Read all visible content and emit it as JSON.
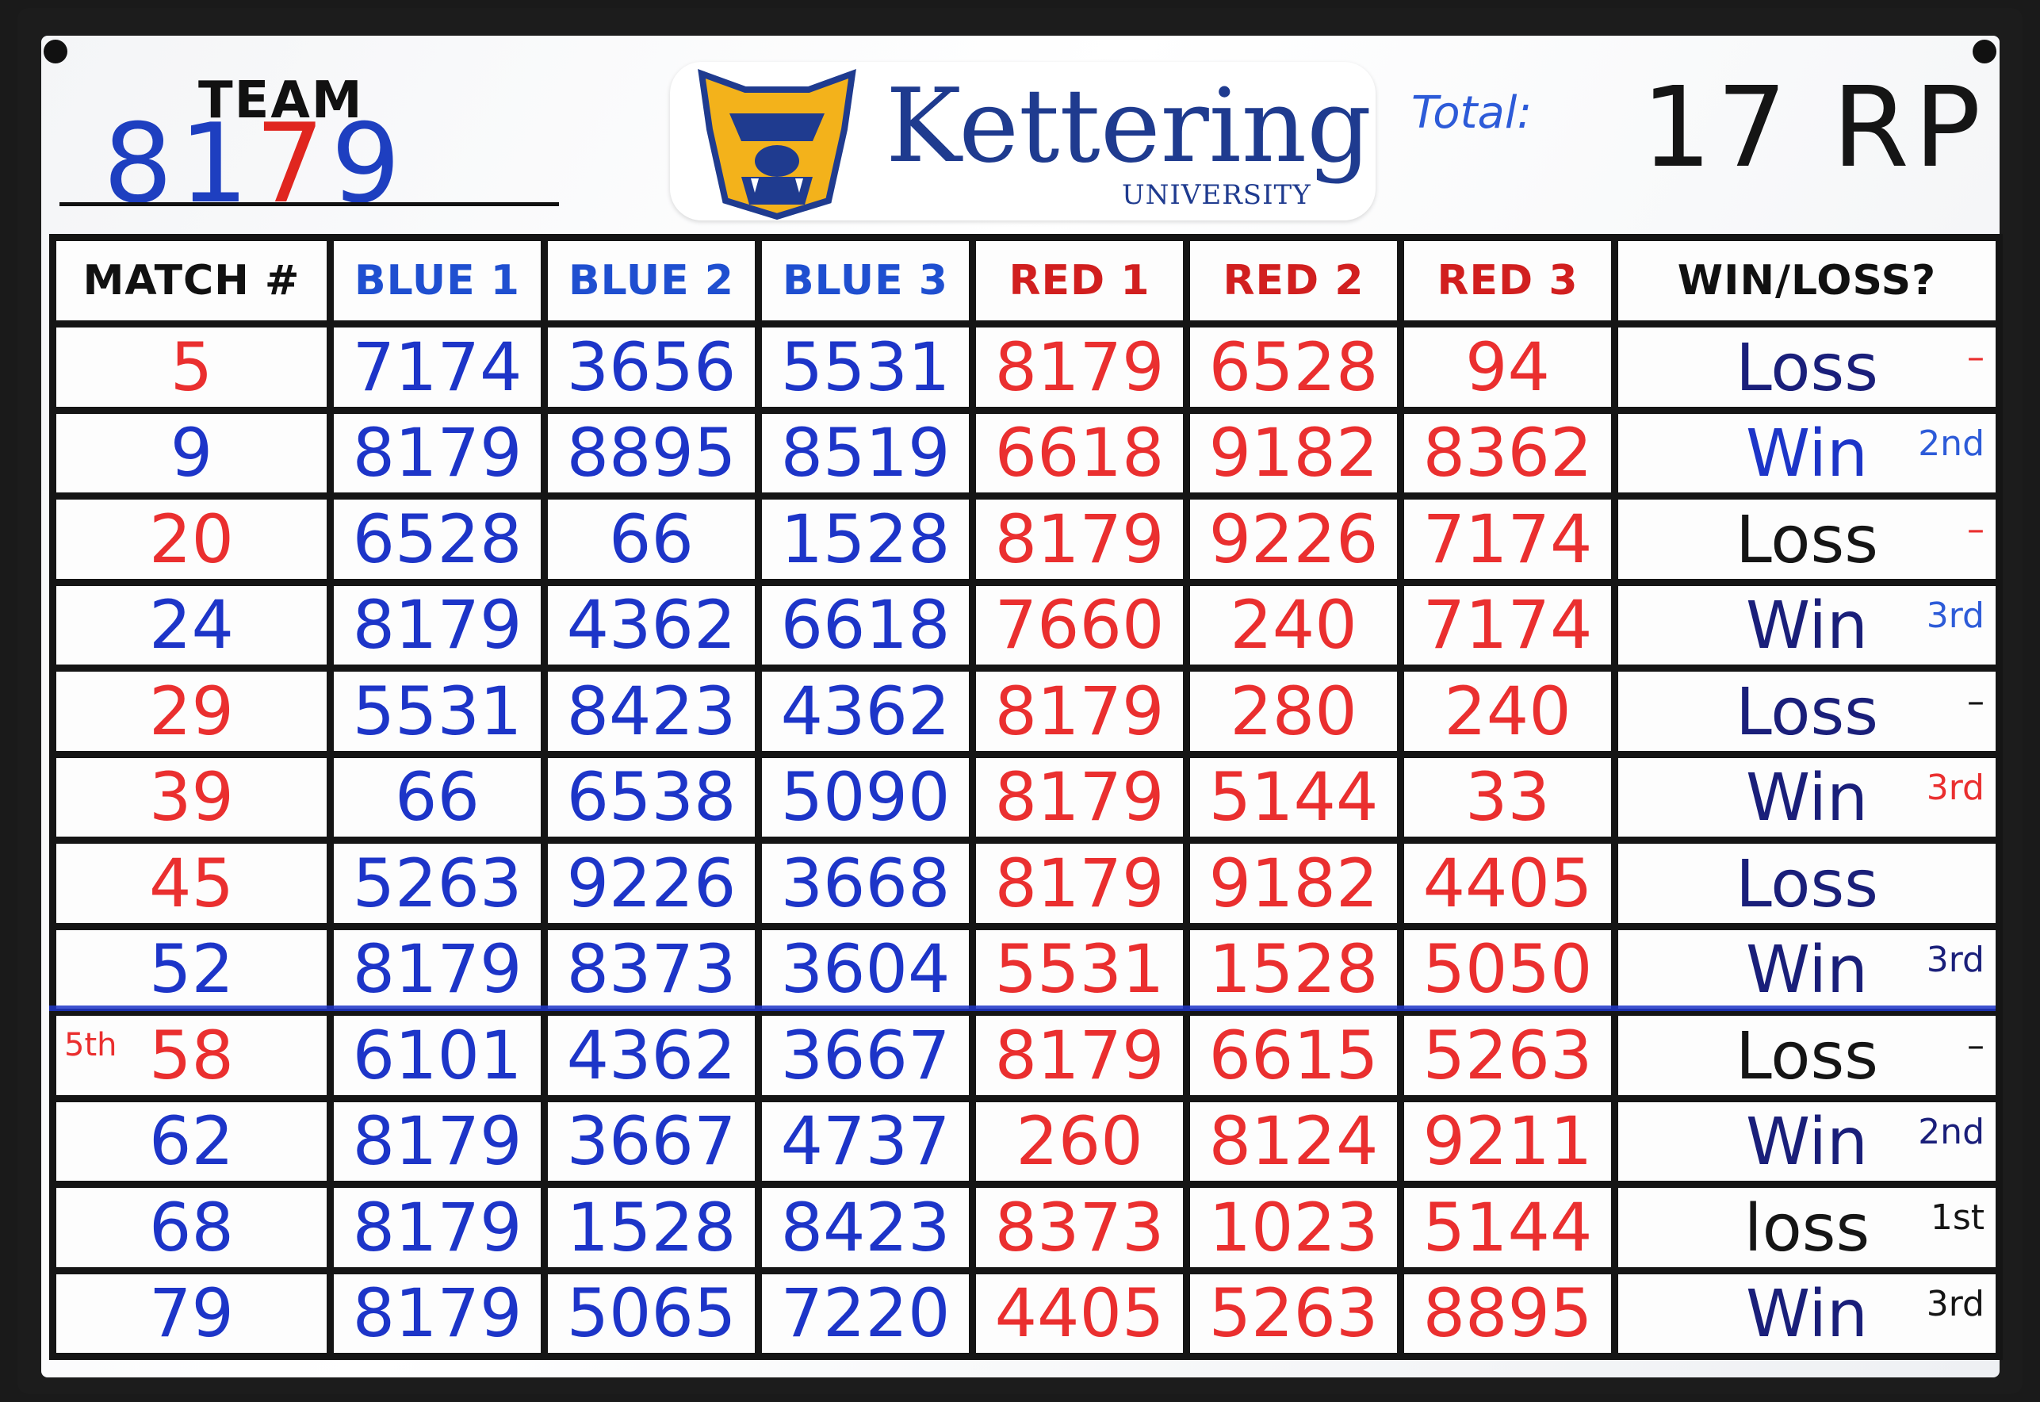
{
  "team": {
    "label": "TEAM",
    "number_blue_1": "81",
    "number_red": "7",
    "number_blue_2": "9"
  },
  "logo": {
    "name": "Kettering",
    "sub": "UNIVERSITY"
  },
  "total": {
    "label": "Total:",
    "value": "17 RP"
  },
  "headers": [
    "MATCH #",
    "BLUE 1",
    "BLUE 2",
    "BLUE 3",
    "RED 1",
    "RED 2",
    "RED 3",
    "WIN/LOSS?"
  ],
  "rows": [
    {
      "match": "5",
      "match_ink": "red",
      "blue": [
        "7174",
        "3656",
        "5531"
      ],
      "red": [
        "8179",
        "6528",
        "94"
      ],
      "result": "Loss",
      "result_ink": "navy",
      "rank": "–",
      "rank_ink": "red"
    },
    {
      "match": "9",
      "match_ink": "blue",
      "blue": [
        "8179",
        "8895",
        "8519"
      ],
      "red": [
        "6618",
        "9182",
        "8362"
      ],
      "result": "Win",
      "result_ink": "blue",
      "rank": "2nd",
      "rank_ink": "blue"
    },
    {
      "match": "20",
      "match_ink": "red",
      "blue": [
        "6528",
        "66",
        "1528"
      ],
      "red": [
        "8179",
        "9226",
        "7174"
      ],
      "result": "Loss",
      "result_ink": "black",
      "rank": "–",
      "rank_ink": "red"
    },
    {
      "match": "24",
      "match_ink": "blue",
      "blue": [
        "8179",
        "4362",
        "6618"
      ],
      "red": [
        "7660",
        "240",
        "7174"
      ],
      "result": "Win",
      "result_ink": "navy",
      "rank": "3rd",
      "rank_ink": "blue"
    },
    {
      "match": "29",
      "match_ink": "red",
      "blue": [
        "5531",
        "8423",
        "4362"
      ],
      "red": [
        "8179",
        "280",
        "240"
      ],
      "result": "Loss",
      "result_ink": "navy",
      "rank": "–",
      "rank_ink": "black"
    },
    {
      "match": "39",
      "match_ink": "red",
      "blue": [
        "66",
        "6538",
        "5090"
      ],
      "red": [
        "8179",
        "5144",
        "33"
      ],
      "result": "Win",
      "result_ink": "navy",
      "rank": "3rd",
      "rank_ink": "red"
    },
    {
      "match": "45",
      "match_ink": "red",
      "blue": [
        "5263",
        "9226",
        "3668"
      ],
      "red": [
        "8179",
        "9182",
        "4405"
      ],
      "result": "Loss",
      "result_ink": "navy",
      "rank": "",
      "rank_ink": "navy"
    },
    {
      "match": "52",
      "match_ink": "blue",
      "blue": [
        "8179",
        "8373",
        "3604"
      ],
      "red": [
        "5531",
        "1528",
        "5050"
      ],
      "result": "Win",
      "result_ink": "navy",
      "rank": "3rd",
      "rank_ink": "navy"
    },
    {
      "match": "58",
      "match_ink": "red",
      "note": "5th",
      "blue": [
        "6101",
        "4362",
        "3667"
      ],
      "red": [
        "8179",
        "6615",
        "5263"
      ],
      "result": "Loss",
      "result_ink": "black",
      "rank": "–",
      "rank_ink": "black"
    },
    {
      "match": "62",
      "match_ink": "blue",
      "blue": [
        "8179",
        "3667",
        "4737"
      ],
      "red": [
        "260",
        "8124",
        "9211"
      ],
      "result": "Win",
      "result_ink": "navy",
      "rank": "2nd",
      "rank_ink": "navy"
    },
    {
      "match": "68",
      "match_ink": "blue",
      "blue": [
        "8179",
        "1528",
        "8423"
      ],
      "red": [
        "8373",
        "1023",
        "5144"
      ],
      "result": "loss",
      "result_ink": "black",
      "rank": "1st",
      "rank_ink": "black"
    },
    {
      "match": "79",
      "match_ink": "blue",
      "blue": [
        "8179",
        "5065",
        "7220"
      ],
      "red": [
        "4405",
        "5263",
        "8895"
      ],
      "result": "Win",
      "result_ink": "navy",
      "rank": "3rd",
      "rank_ink": "black"
    }
  ]
}
